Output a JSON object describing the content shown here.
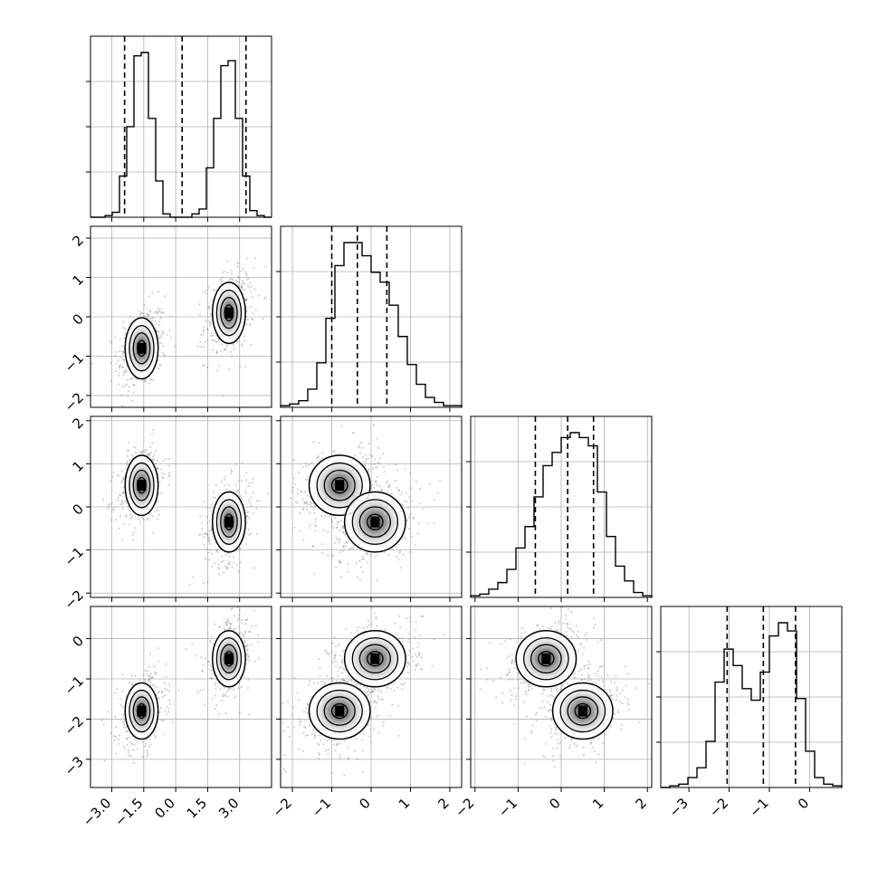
{
  "chart_data": {
    "type": "corner",
    "title": "",
    "params": [
      {
        "name": "",
        "range": [
          -4.0,
          4.5
        ],
        "ticks": [
          -3.0,
          -1.5,
          0.0,
          1.5,
          3.0
        ],
        "tick_labels": [
          "−3.0",
          "−1.5",
          "0.0",
          "1.5",
          "3.0"
        ],
        "quantiles": [
          -2.4,
          0.3,
          3.3
        ]
      },
      {
        "name": "",
        "range": [
          -2.3,
          2.3
        ],
        "ticks": [
          -2,
          -1,
          0,
          1,
          2
        ],
        "tick_labels": [
          "−2",
          "−1",
          "0",
          "1",
          "2"
        ],
        "quantiles": [
          -1.0,
          -0.35,
          0.4
        ]
      },
      {
        "name": "",
        "range": [
          -2.1,
          2.1
        ],
        "ticks": [
          -2,
          -1,
          0,
          1,
          2
        ],
        "tick_labels": [
          "−2",
          "−1",
          "0",
          "1",
          "2"
        ],
        "quantiles": [
          -0.6,
          0.15,
          0.75
        ]
      },
      {
        "name": "",
        "range": [
          -3.7,
          0.8
        ],
        "ticks": [
          -3,
          -2,
          -1,
          0
        ],
        "tick_labels": [
          "−3",
          "−2",
          "−1",
          "0"
        ],
        "quantiles": [
          -2.05,
          -1.15,
          -0.35
        ]
      }
    ],
    "histograms": [
      [
        0,
        0,
        0.01,
        0.03,
        0.25,
        0.55,
        0.98,
        1.0,
        0.6,
        0.22,
        0.02,
        0,
        0,
        0,
        0.02,
        0.05,
        0.3,
        0.6,
        0.92,
        0.95,
        0.6,
        0.25,
        0.04,
        0.01,
        0
      ],
      [
        0.01,
        0.02,
        0.04,
        0.11,
        0.27,
        0.54,
        0.86,
        1.0,
        1.0,
        0.92,
        0.82,
        0.76,
        0.62,
        0.43,
        0.26,
        0.14,
        0.06,
        0.03,
        0.01,
        0.01
      ],
      [
        0.01,
        0.02,
        0.05,
        0.09,
        0.17,
        0.3,
        0.43,
        0.61,
        0.8,
        0.88,
        0.97,
        1.0,
        0.97,
        0.92,
        0.64,
        0.37,
        0.19,
        0.1,
        0.03,
        0.01
      ],
      [
        0,
        0.01,
        0.02,
        0.06,
        0.12,
        0.28,
        0.64,
        0.84,
        0.74,
        0.6,
        0.53,
        0.7,
        0.92,
        1.0,
        0.95,
        0.54,
        0.22,
        0.06,
        0.02,
        0.01
      ]
    ],
    "mixture_components": [
      {
        "weight": 0.5,
        "mean": [
          -1.6,
          -0.8,
          0.5,
          -1.8
        ]
      },
      {
        "weight": 0.5,
        "mean": [
          2.5,
          0.1,
          -0.35,
          -0.5
        ]
      }
    ],
    "component_sd": [
      0.5,
      0.5,
      0.45,
      0.45
    ]
  }
}
